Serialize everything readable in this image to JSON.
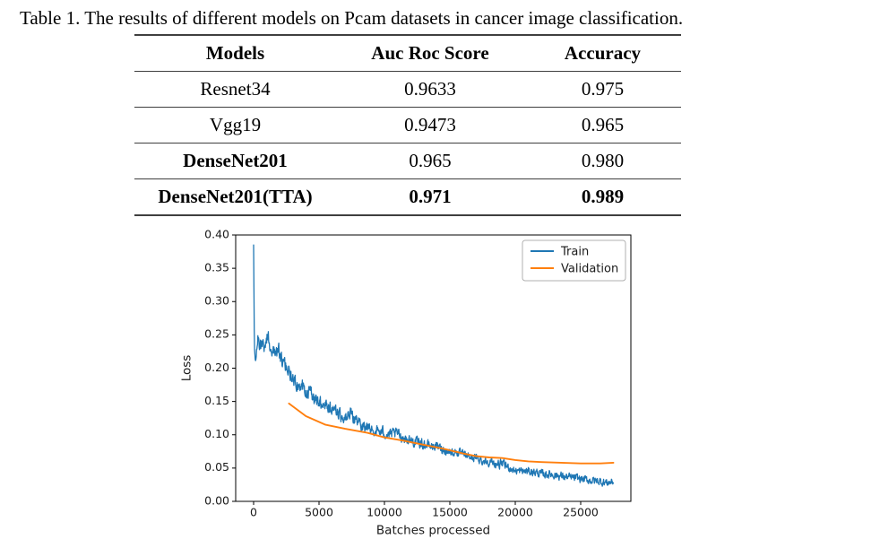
{
  "caption": {
    "text": "Table 1. The results of different models on Pcam datasets in cancer image classification."
  },
  "table": {
    "headers": [
      "Models",
      "Auc Roc Score",
      "Accuracy"
    ],
    "rows": [
      {
        "model": "Resnet34",
        "auc": "0.9633",
        "acc": "0.975",
        "bold_model": false,
        "bold_values": false
      },
      {
        "model": "Vgg19",
        "auc": "0.9473",
        "acc": "0.965",
        "bold_model": false,
        "bold_values": false
      },
      {
        "model": "DenseNet201",
        "auc": "0.965",
        "acc": "0.980",
        "bold_model": true,
        "bold_values": false
      },
      {
        "model": "DenseNet201(TTA)",
        "auc": "0.971",
        "acc": "0.989",
        "bold_model": true,
        "bold_values": true
      }
    ]
  },
  "chart_data": {
    "type": "line",
    "title": "",
    "xlabel": "Batches processed",
    "ylabel": "Loss",
    "xlim": [
      -1400,
      28800
    ],
    "ylim": [
      0,
      0.4
    ],
    "xticks": [
      0,
      5000,
      10000,
      15000,
      20000,
      25000
    ],
    "yticks": [
      0.0,
      0.05,
      0.1,
      0.15,
      0.2,
      0.25,
      0.3,
      0.35,
      0.4
    ],
    "grid": false,
    "legend_position": "upper right",
    "axis_color": "#000000",
    "series": [
      {
        "name": "Train",
        "color": "#1f77b4",
        "style": "noisy",
        "x": [
          0,
          60,
          150,
          300,
          500,
          700,
          900,
          1100,
          1300,
          1600,
          1900,
          2100,
          2400,
          2700,
          3000,
          3300,
          3600,
          3900,
          4200,
          4500,
          4800,
          5100,
          5500,
          5900,
          6300,
          6700,
          7100,
          7500,
          8000,
          8500,
          9000,
          9500,
          10000,
          10500,
          11000,
          11500,
          12000,
          12500,
          13000,
          13500,
          14000,
          14500,
          15000,
          15500,
          16000,
          16500,
          17000,
          17500,
          18000,
          18500,
          19000,
          19500,
          20000,
          20500,
          21000,
          21500,
          22000,
          22500,
          23000,
          23500,
          24000,
          24500,
          25000,
          25500,
          26000,
          26500,
          27000,
          27500
        ],
        "y": [
          0.385,
          0.232,
          0.206,
          0.243,
          0.238,
          0.232,
          0.238,
          0.248,
          0.235,
          0.222,
          0.226,
          0.212,
          0.203,
          0.196,
          0.186,
          0.176,
          0.18,
          0.163,
          0.163,
          0.158,
          0.152,
          0.148,
          0.149,
          0.143,
          0.136,
          0.128,
          0.126,
          0.131,
          0.118,
          0.112,
          0.108,
          0.105,
          0.103,
          0.1,
          0.102,
          0.095,
          0.091,
          0.089,
          0.086,
          0.083,
          0.083,
          0.078,
          0.074,
          0.074,
          0.07,
          0.067,
          0.065,
          0.061,
          0.06,
          0.056,
          0.056,
          0.051,
          0.046,
          0.045,
          0.045,
          0.044,
          0.041,
          0.041,
          0.04,
          0.038,
          0.036,
          0.035,
          0.034,
          0.032,
          0.031,
          0.03,
          0.028,
          0.03
        ]
      },
      {
        "name": "Validation",
        "color": "#ff7f0e",
        "style": "smooth",
        "x": [
          2700,
          4000,
          5500,
          7000,
          8700,
          10000,
          11500,
          13000,
          14500,
          16000,
          17000,
          18000,
          19000,
          20000,
          21000,
          22000,
          23500,
          25000,
          26500,
          27500
        ],
        "y": [
          0.147,
          0.128,
          0.115,
          0.109,
          0.103,
          0.096,
          0.091,
          0.085,
          0.079,
          0.072,
          0.068,
          0.066,
          0.065,
          0.062,
          0.06,
          0.059,
          0.058,
          0.057,
          0.057,
          0.058
        ]
      }
    ]
  }
}
